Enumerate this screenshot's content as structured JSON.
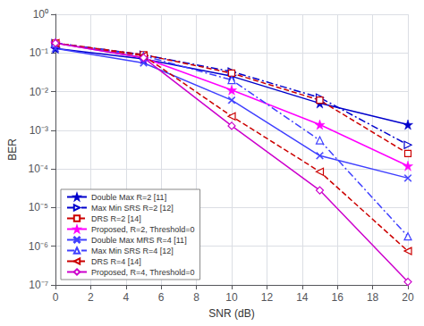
{
  "chart_data": {
    "type": "line",
    "xlabel": "SNR (dB)",
    "ylabel": "BER",
    "x": [
      0,
      5,
      10,
      15,
      20
    ],
    "series": [
      {
        "name": "Double Max R=2 [11]",
        "color": "#0000CC",
        "marker": "star",
        "line_style": "solid",
        "values": [
          0.13,
          0.07,
          0.025,
          0.005,
          0.0014
        ]
      },
      {
        "name": "Max Min SRS R=2 [12]",
        "color": "#0000CC",
        "marker": "triangle-right",
        "line_style": "dashdot",
        "values": [
          0.18,
          0.09,
          0.033,
          0.007,
          0.00042
        ]
      },
      {
        "name": "DRS R=2 [14]",
        "color": "#CC0000",
        "marker": "square",
        "line_style": "dashed",
        "values": [
          0.18,
          0.09,
          0.03,
          0.006,
          0.00025
        ]
      },
      {
        "name": "Proposed, R=2, Threshold=0",
        "color": "#FF00FF",
        "marker": "star",
        "line_style": "solid",
        "values": [
          0.18,
          0.075,
          0.011,
          0.0014,
          0.00012
        ]
      },
      {
        "name": "Double Max MRS R=4 [11]",
        "color": "#4040FF",
        "marker": "x",
        "line_style": "solid",
        "values": [
          0.13,
          0.055,
          0.006,
          0.00022,
          5.8e-05
        ]
      },
      {
        "name": "Max Min SRS R=4 [12]",
        "color": "#4040FF",
        "marker": "triangle-up",
        "line_style": "dashdot",
        "values": [
          0.18,
          0.085,
          0.02,
          0.00055,
          1.8e-06
        ]
      },
      {
        "name": "DRS R=4 [14]",
        "color": "#CC0000",
        "marker": "triangle-left",
        "line_style": "dashed",
        "values": [
          0.18,
          0.085,
          0.0023,
          8.5e-05,
          7.5e-07
        ]
      },
      {
        "name": "Proposed, R=4, Threshold=0",
        "color": "#CC00CC",
        "marker": "diamond",
        "line_style": "solid",
        "values": [
          0.18,
          0.075,
          0.0013,
          2.8e-05,
          1.2e-07
        ]
      }
    ],
    "xlim": [
      0,
      20
    ],
    "xticks": [
      0,
      2,
      4,
      6,
      8,
      10,
      12,
      14,
      16,
      18,
      20
    ],
    "ylim": [
      1e-07,
      1
    ],
    "yticks": [
      {
        "value": 1e-07,
        "label": "10⁻⁷"
      },
      {
        "value": 1e-06,
        "label": "10⁻⁶"
      },
      {
        "value": 1e-05,
        "label": "10⁻⁵"
      },
      {
        "value": 0.0001,
        "label": "10⁻⁴"
      },
      {
        "value": 0.001,
        "label": "10⁻³"
      },
      {
        "value": 0.01,
        "label": "10⁻²"
      },
      {
        "value": 0.1,
        "label": "10⁻¹"
      },
      {
        "value": 1,
        "label": "10⁰"
      }
    ],
    "log": "y",
    "grid": true,
    "legend": "lower left"
  }
}
